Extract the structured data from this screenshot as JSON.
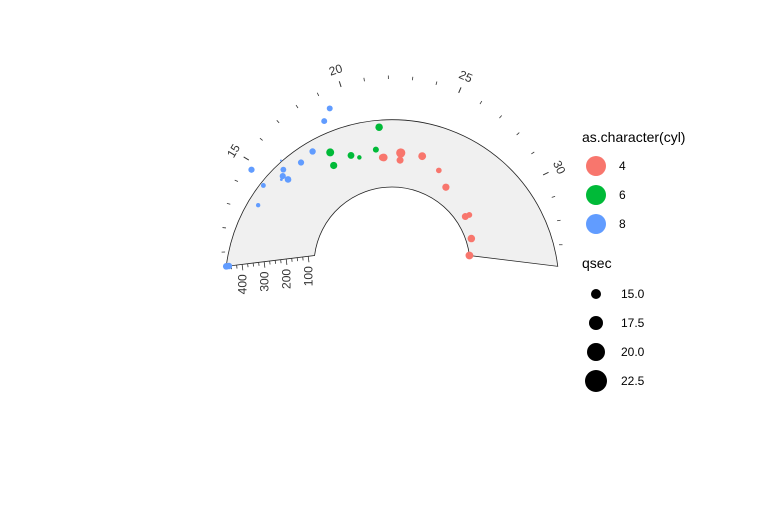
{
  "chart_data": {
    "type": "scatter",
    "coordinate_system": "polar (partial arc)",
    "theta_axis": {
      "variable": "mpg",
      "range": [
        10.4,
        33.9
      ],
      "ticks": [
        15,
        20,
        25,
        30
      ],
      "tick_labels": [
        "15",
        "20",
        "25",
        "30"
      ]
    },
    "radius_axis": {
      "variable": "disp",
      "range": [
        71.1,
        472
      ],
      "ticks": [
        100,
        200,
        300,
        400
      ],
      "tick_labels": [
        "100",
        "200",
        "300",
        "400"
      ]
    },
    "xlabel": "",
    "ylabel": "",
    "color_legend": {
      "title": "as.character(cyl)",
      "entries": [
        {
          "label": "4",
          "color": "#F8766D"
        },
        {
          "label": "6",
          "color": "#00BA38"
        },
        {
          "label": "8",
          "color": "#619CFF"
        }
      ]
    },
    "size_legend": {
      "title": "qsec",
      "entries": [
        {
          "label": "15.0",
          "value": 15.0
        },
        {
          "label": "17.5",
          "value": 17.5
        },
        {
          "label": "20.0",
          "value": 20.0
        },
        {
          "label": "22.5",
          "value": 22.5
        }
      ]
    },
    "size_range": [
      14.5,
      22.9
    ],
    "points": [
      {
        "mpg": 21.0,
        "disp": 160,
        "cyl": "6",
        "qsec": 16.46
      },
      {
        "mpg": 21.0,
        "disp": 160,
        "cyl": "6",
        "qsec": 17.02
      },
      {
        "mpg": 22.8,
        "disp": 108,
        "cyl": "4",
        "qsec": 18.61
      },
      {
        "mpg": 21.4,
        "disp": 258,
        "cyl": "6",
        "qsec": 19.44
      },
      {
        "mpg": 18.7,
        "disp": 360,
        "cyl": "8",
        "qsec": 17.02
      },
      {
        "mpg": 18.1,
        "disp": 225,
        "cyl": "6",
        "qsec": 20.22
      },
      {
        "mpg": 14.3,
        "disp": 360,
        "cyl": "8",
        "qsec": 15.84
      },
      {
        "mpg": 24.4,
        "disp": 146.7,
        "cyl": "4",
        "qsec": 20.0
      },
      {
        "mpg": 22.8,
        "disp": 140.8,
        "cyl": "4",
        "qsec": 22.9
      },
      {
        "mpg": 19.2,
        "disp": 167.6,
        "cyl": "6",
        "qsec": 18.3
      },
      {
        "mpg": 17.8,
        "disp": 167.6,
        "cyl": "6",
        "qsec": 18.9
      },
      {
        "mpg": 16.4,
        "disp": 275.8,
        "cyl": "8",
        "qsec": 17.4
      },
      {
        "mpg": 17.3,
        "disp": 275.8,
        "cyl": "8",
        "qsec": 17.6
      },
      {
        "mpg": 15.2,
        "disp": 275.8,
        "cyl": "8",
        "qsec": 18.0
      },
      {
        "mpg": 10.4,
        "disp": 472,
        "cyl": "8",
        "qsec": 17.98
      },
      {
        "mpg": 10.4,
        "disp": 460,
        "cyl": "8",
        "qsec": 17.82
      },
      {
        "mpg": 14.7,
        "disp": 440,
        "cyl": "8",
        "qsec": 17.42
      },
      {
        "mpg": 32.4,
        "disp": 78.7,
        "cyl": "4",
        "qsec": 19.47
      },
      {
        "mpg": 30.4,
        "disp": 75.7,
        "cyl": "4",
        "qsec": 18.52
      },
      {
        "mpg": 33.9,
        "disp": 71.1,
        "cyl": "4",
        "qsec": 19.9
      },
      {
        "mpg": 21.5,
        "disp": 120.1,
        "cyl": "4",
        "qsec": 20.01
      },
      {
        "mpg": 15.5,
        "disp": 318,
        "cyl": "8",
        "qsec": 16.87
      },
      {
        "mpg": 15.2,
        "disp": 304,
        "cyl": "8",
        "qsec": 17.3
      },
      {
        "mpg": 13.3,
        "disp": 350,
        "cyl": "8",
        "qsec": 15.41
      },
      {
        "mpg": 19.2,
        "disp": 400,
        "cyl": "8",
        "qsec": 17.05
      },
      {
        "mpg": 27.3,
        "disp": 79,
        "cyl": "4",
        "qsec": 18.9
      },
      {
        "mpg": 26.0,
        "disp": 120.3,
        "cyl": "4",
        "qsec": 16.7
      },
      {
        "mpg": 30.4,
        "disp": 95.1,
        "cyl": "4",
        "qsec": 16.9
      },
      {
        "mpg": 15.8,
        "disp": 351,
        "cyl": "8",
        "qsec": 14.5
      },
      {
        "mpg": 19.7,
        "disp": 145,
        "cyl": "6",
        "qsec": 15.5
      },
      {
        "mpg": 15.0,
        "disp": 301,
        "cyl": "8",
        "qsec": 14.6
      },
      {
        "mpg": 21.4,
        "disp": 121,
        "cyl": "4",
        "qsec": 18.6
      }
    ]
  }
}
